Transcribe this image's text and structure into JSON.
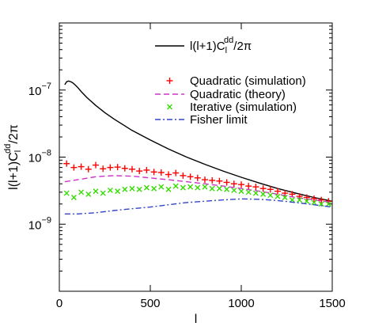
{
  "chart_data": {
    "type": "line",
    "title": "",
    "xlabel": "l",
    "ylabel": "l(l+1)C_l^dd/2π",
    "ylabel_parts": {
      "pre": "l(l+1)C",
      "sub": "l",
      "sup": "dd",
      "post": "/2π"
    },
    "xlim": [
      0,
      1500
    ],
    "ylim": [
      1e-10,
      1e-06
    ],
    "yscale": "log",
    "grid": false,
    "legend_position": "top-right",
    "x_ticks": [
      0,
      500,
      1000,
      1500
    ],
    "x_tick_labels": [
      "0",
      "500",
      "1000",
      "1500"
    ],
    "y_ticks": [
      1e-09,
      1e-08,
      1e-07
    ],
    "y_tick_labels": [
      {
        "base": "10",
        "exp": "−9"
      },
      {
        "base": "10",
        "exp": "−8"
      },
      {
        "base": "10",
        "exp": "−7"
      }
    ],
    "series": [
      {
        "name": "l(l+1)C_l^dd/2π",
        "legend_parts": {
          "pre": "l(l+1)C",
          "sub": "l",
          "sup": "dd",
          "post": "/2π"
        },
        "style": "solid",
        "marker": "none",
        "color": "#000000",
        "x": [
          30,
          40,
          50,
          60,
          70,
          80,
          100,
          120,
          150,
          200,
          250,
          300,
          400,
          500,
          600,
          700,
          800,
          900,
          1000,
          1100,
          1200,
          1300,
          1400,
          1500
        ],
        "y": [
          1.2e-07,
          1.33e-07,
          1.36e-07,
          1.34e-07,
          1.3e-07,
          1.24e-07,
          1.1e-07,
          9.5e-08,
          7.8e-08,
          5.9e-08,
          4.6e-08,
          3.7e-08,
          2.5e-08,
          1.8e-08,
          1.32e-08,
          1e-08,
          7.8e-09,
          6.2e-09,
          5e-09,
          4.1e-09,
          3.4e-09,
          2.9e-09,
          2.5e-09,
          2.2e-09
        ]
      },
      {
        "name": "Quadratic (simulation)",
        "style": "none",
        "marker": "plus",
        "color": "#ff0000",
        "x": [
          40,
          80,
          120,
          160,
          200,
          240,
          280,
          320,
          360,
          400,
          440,
          480,
          520,
          560,
          600,
          640,
          680,
          720,
          760,
          800,
          840,
          880,
          920,
          960,
          1000,
          1040,
          1080,
          1120,
          1160,
          1200,
          1240,
          1280,
          1320,
          1360,
          1400,
          1440,
          1480
        ],
        "y": [
          8e-09,
          7e-09,
          7.2e-09,
          6.6e-09,
          7.6e-09,
          6.7e-09,
          7e-09,
          7.1e-09,
          6.8e-09,
          6.6e-09,
          6.2e-09,
          6.4e-09,
          6e-09,
          5.9e-09,
          5.5e-09,
          5.8e-09,
          5.3e-09,
          5.1e-09,
          4.9e-09,
          4.6e-09,
          4.5e-09,
          4.4e-09,
          4.2e-09,
          4e-09,
          3.9e-09,
          3.7e-09,
          3.6e-09,
          3.4e-09,
          3.3e-09,
          3.1e-09,
          2.9e-09,
          2.8e-09,
          2.6e-09,
          2.5e-09,
          2.4e-09,
          2.3e-09,
          2.2e-09
        ]
      },
      {
        "name": "Quadratic (theory)",
        "style": "dashed",
        "marker": "none",
        "color": "#cc33cc",
        "x": [
          30,
          100,
          200,
          300,
          400,
          500,
          600,
          700,
          800,
          900,
          1000,
          1100,
          1200,
          1300,
          1400,
          1500
        ],
        "y": [
          4.3e-09,
          4.6e-09,
          5.1e-09,
          5.3e-09,
          5.2e-09,
          4.9e-09,
          4.6e-09,
          4.3e-09,
          4e-09,
          3.7e-09,
          3.4e-09,
          3.1e-09,
          2.8e-09,
          2.5e-09,
          2.3e-09,
          2.1e-09
        ]
      },
      {
        "name": "Iterative (simulation)",
        "style": "none",
        "marker": "cross",
        "color": "#33dd00",
        "x": [
          40,
          80,
          120,
          160,
          200,
          240,
          280,
          320,
          360,
          400,
          440,
          480,
          520,
          560,
          600,
          640,
          680,
          720,
          760,
          800,
          840,
          880,
          920,
          960,
          1000,
          1040,
          1080,
          1120,
          1160,
          1200,
          1240,
          1280,
          1320,
          1360,
          1400,
          1440,
          1480
        ],
        "y": [
          2.9e-09,
          2.5e-09,
          3e-09,
          2.8e-09,
          3.1e-09,
          2.9e-09,
          3.2e-09,
          3.1e-09,
          3.3e-09,
          3.4e-09,
          3.3e-09,
          3.5e-09,
          3.4e-09,
          3.6e-09,
          3.3e-09,
          3.7e-09,
          3.5e-09,
          3.6e-09,
          3.5e-09,
          3.6e-09,
          3.4e-09,
          3.4e-09,
          3.3e-09,
          3.2e-09,
          3.1e-09,
          3e-09,
          2.9e-09,
          2.8e-09,
          2.7e-09,
          2.6e-09,
          2.5e-09,
          2.3e-09,
          2.3e-09,
          2.2e-09,
          2.1e-09,
          2e-09,
          2e-09
        ]
      },
      {
        "name": "Fisher limit",
        "style": "dashdot",
        "marker": "none",
        "color": "#3344cc",
        "x": [
          30,
          100,
          200,
          300,
          400,
          500,
          600,
          700,
          800,
          900,
          1000,
          1100,
          1200,
          1300,
          1400,
          1500
        ],
        "y": [
          1.42e-09,
          1.42e-09,
          1.48e-09,
          1.6e-09,
          1.7e-09,
          1.8e-09,
          1.95e-09,
          2.1e-09,
          2.2e-09,
          2.3e-09,
          2.38e-09,
          2.35e-09,
          2.25e-09,
          2.1e-09,
          1.95e-09,
          1.8e-09
        ]
      }
    ]
  }
}
